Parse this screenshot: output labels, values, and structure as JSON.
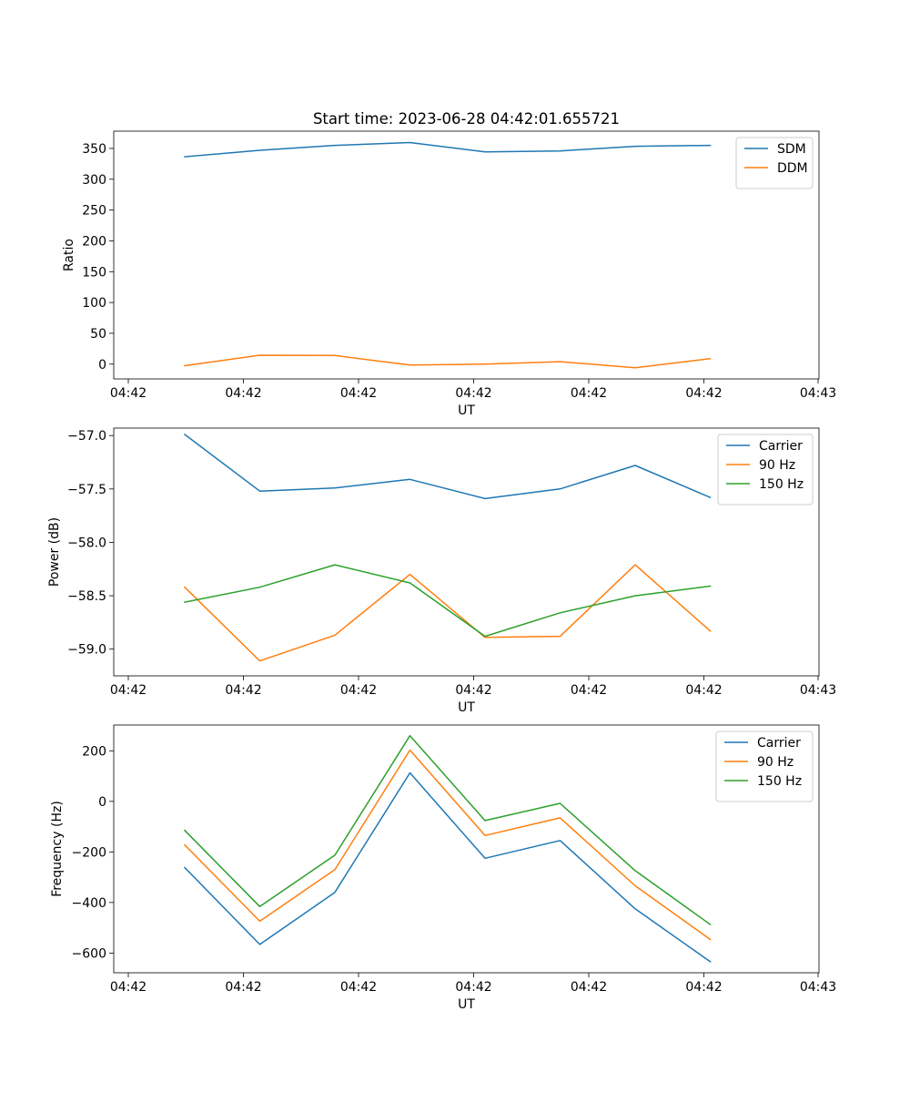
{
  "title": "Start time: 2023-06-28 04:42:01.655721",
  "chart_data": [
    {
      "type": "line",
      "title": "Start time: 2023-06-28 04:42:01.655721",
      "xlabel": "UT",
      "ylabel": "Ratio",
      "xtick_labels": [
        "04:42",
        "04:42",
        "04:42",
        "04:42",
        "04:42",
        "04:42",
        "04:43"
      ],
      "ylim": [
        -24,
        378
      ],
      "yticks": [
        0,
        50,
        100,
        150,
        200,
        250,
        300,
        350
      ],
      "yticks_labels": [
        "0",
        "50",
        "100",
        "150",
        "200",
        "250",
        "300",
        "350"
      ],
      "grid": false,
      "legend_position": "top-right",
      "series": [
        {
          "name": "SDM",
          "color": "#1f77b4",
          "values": [
            336.5,
            347,
            355,
            359.5,
            344.5,
            346,
            353.5,
            355
          ]
        },
        {
          "name": "DDM",
          "color": "#ff7f0e",
          "values": [
            -2.5,
            14.5,
            14,
            -1.5,
            0,
            4,
            -6,
            9
          ]
        }
      ]
    },
    {
      "type": "line",
      "xlabel": "UT",
      "ylabel": "Power (dB)",
      "xtick_labels": [
        "04:42",
        "04:42",
        "04:42",
        "04:42",
        "04:42",
        "04:42",
        "04:43"
      ],
      "ylim": [
        -59.25,
        -56.93
      ],
      "yticks": [
        -59.0,
        -58.5,
        -58.0,
        -57.5,
        -57.0
      ],
      "yticks_labels": [
        "−59.0",
        "−58.5",
        "−58.0",
        "−57.5",
        "−57.0"
      ],
      "grid": false,
      "legend_position": "top-right",
      "series": [
        {
          "name": "Carrier",
          "color": "#1f77b4",
          "values": [
            -56.99,
            -57.52,
            -57.49,
            -57.41,
            -57.59,
            -57.5,
            -57.28,
            -57.58
          ]
        },
        {
          "name": "90 Hz",
          "color": "#ff7f0e",
          "values": [
            -58.42,
            -59.11,
            -58.87,
            -58.3,
            -58.89,
            -58.88,
            -58.21,
            -58.83
          ]
        },
        {
          "name": "150 Hz",
          "color": "#2ca02c",
          "values": [
            -58.56,
            -58.42,
            -58.21,
            -58.38,
            -58.88,
            -58.66,
            -58.5,
            -58.41
          ]
        }
      ]
    },
    {
      "type": "line",
      "xlabel": "UT",
      "ylabel": "Frequency (Hz)",
      "xtick_labels": [
        "04:42",
        "04:42",
        "04:42",
        "04:42",
        "04:42",
        "04:42",
        "04:43"
      ],
      "ylim": [
        -678,
        302
      ],
      "yticks": [
        -600,
        -400,
        -200,
        0,
        200
      ],
      "yticks_labels": [
        "−600",
        "−400",
        "−200",
        "0",
        "200"
      ],
      "grid": false,
      "legend_position": "top-right",
      "series": [
        {
          "name": "Carrier",
          "color": "#1f77b4",
          "values": [
            -262,
            -566,
            -360,
            113,
            -225,
            -155,
            -425,
            -634
          ]
        },
        {
          "name": "90 Hz",
          "color": "#ff7f0e",
          "values": [
            -172,
            -474,
            -270,
            203,
            -135,
            -65,
            -334,
            -546
          ]
        },
        {
          "name": "150 Hz",
          "color": "#2ca02c",
          "values": [
            -115,
            -416,
            -213,
            260,
            -76,
            -8,
            -274,
            -487
          ]
        }
      ]
    }
  ]
}
